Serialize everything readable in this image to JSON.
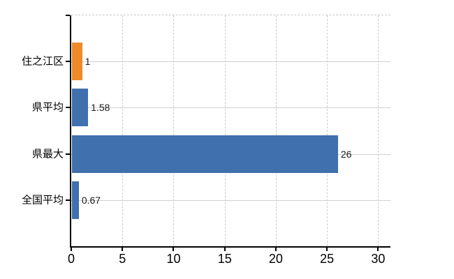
{
  "chart_data": {
    "type": "bar",
    "orientation": "horizontal",
    "title": "",
    "xlabel": "",
    "ylabel": "",
    "categories": [
      "住之江区",
      "県平均",
      "県最大",
      "全国平均"
    ],
    "values": [
      1,
      1.58,
      26,
      0.67
    ],
    "value_labels": [
      "1",
      "1.58",
      "26",
      "0.67"
    ],
    "bar_colors": [
      "#ee8a28",
      "#4070ae",
      "#4070ae",
      "#4070ae"
    ],
    "x_ticks": [
      0,
      5,
      10,
      15,
      20,
      25,
      30
    ],
    "xlim": [
      0,
      31.2
    ],
    "grid": "on",
    "legend": "none",
    "colors": {
      "highlight_orange": "#ee8a28",
      "primary_blue": "#4070ae",
      "h_gridline": "#ccd2cb",
      "v_gridline": "#cccccc",
      "axis": "#000000",
      "background": "#ffffff"
    }
  }
}
